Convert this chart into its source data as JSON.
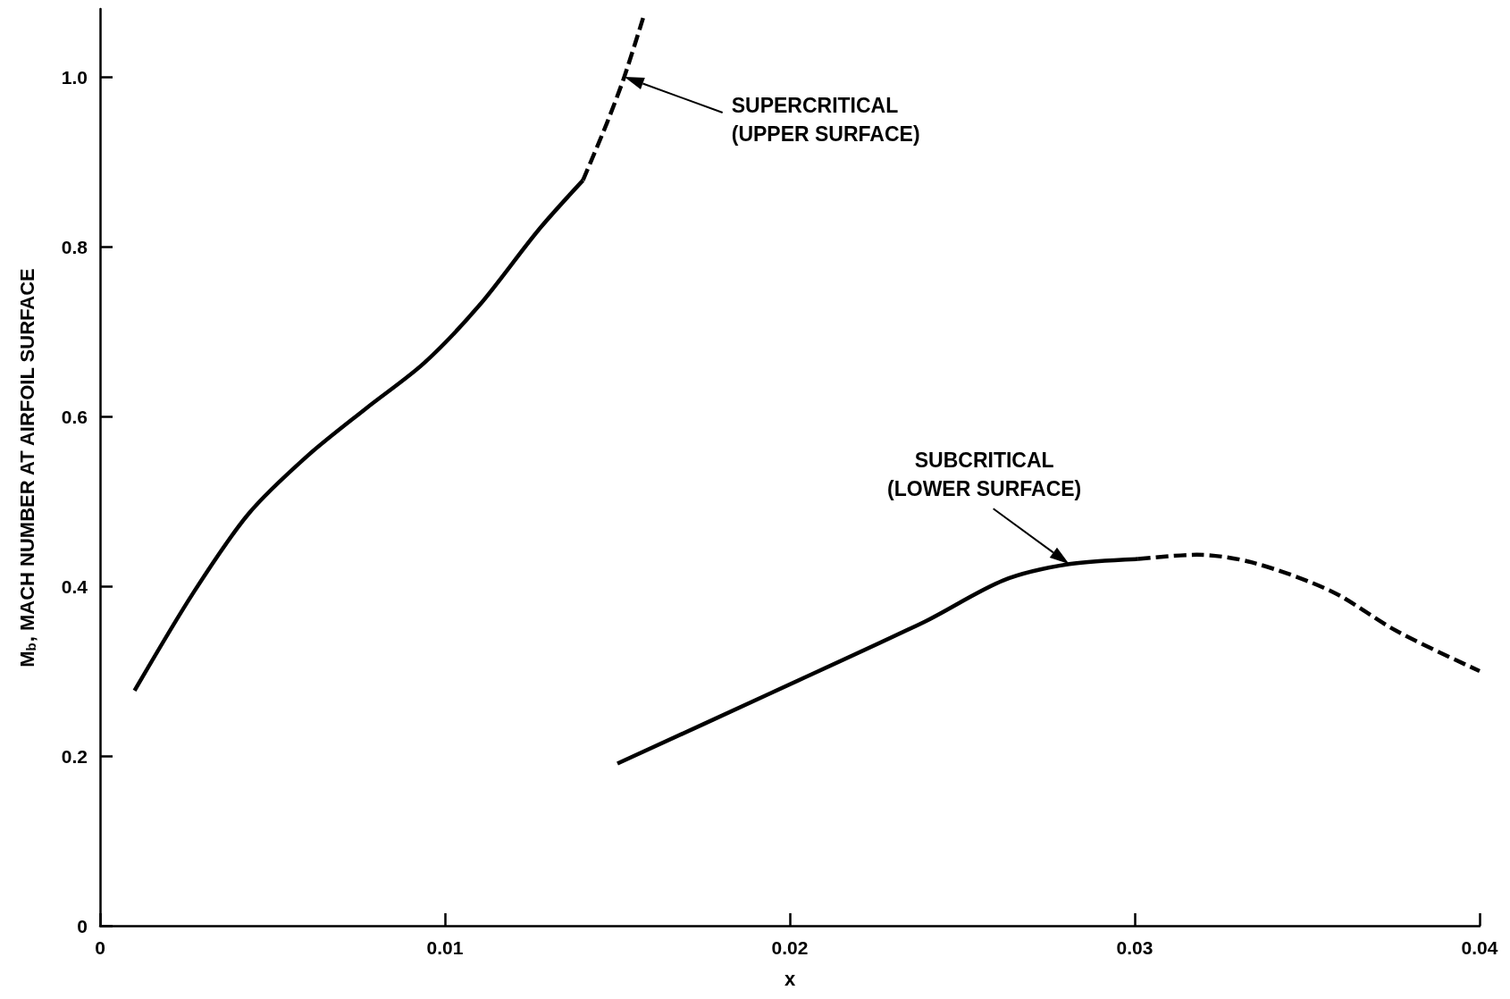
{
  "chart_data": {
    "type": "line",
    "xlabel": "x",
    "ylabel": "M$_{b}$, MACH NUMBER AT AIRFOIL SURFACE",
    "xlim": [
      0,
      0.04
    ],
    "xticks": [
      0,
      0.01,
      0.02,
      0.03,
      0.04
    ],
    "ylim": [
      0,
      1.08
    ],
    "yticks": [
      0,
      0.2,
      0.4,
      0.6,
      0.8,
      {
        "value": 1,
        "label": "1.0"
      }
    ],
    "grid": false,
    "marker": "none",
    "series": [
      {
        "color": "#000000",
        "line_style": "solid",
        "x": [
          0.001,
          0.0027,
          0.0043,
          0.006,
          0.0077,
          0.0094,
          0.011,
          0.0127,
          0.014
        ],
        "values": [
          0.277,
          0.392,
          0.485,
          0.553,
          0.609,
          0.663,
          0.731,
          0.819,
          0.878
        ]
      },
      {
        "color": "#000000",
        "line_style": "dashed",
        "x": [
          0.014,
          0.0147,
          0.0152,
          0.01575
        ],
        "values": [
          0.878,
          0.946,
          1.0,
          1.07
        ]
      },
      {
        "color": "#000000",
        "line_style": "solid",
        "x": [
          0.015,
          0.0195,
          0.0239,
          0.0262,
          0.0281,
          0.0301
        ],
        "values": [
          0.191,
          0.275,
          0.358,
          0.407,
          0.426,
          0.432
        ]
      },
      {
        "color": "#000000",
        "line_style": "dashed",
        "x": [
          0.0301,
          0.0318,
          0.0334,
          0.0357,
          0.0376,
          0.04
        ],
        "values": [
          0.432,
          0.437,
          0.428,
          0.394,
          0.347,
          0.3
        ]
      }
    ],
    "annotations": [
      "SUPERCRITICAL\n(UPPER SURFACE)",
      "SUBCRITICAL\n(LOWER SURFACE)"
    ]
  }
}
